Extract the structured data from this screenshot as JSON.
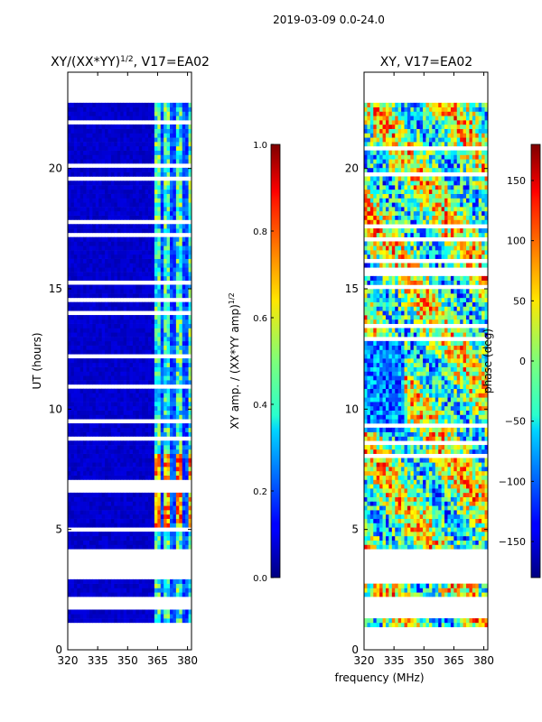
{
  "figure": {
    "suptitle": "2019-03-09 0.0-24.0",
    "xlabel_shared": "frequency (MHz)"
  },
  "chart_data": [
    {
      "type": "heatmap",
      "id": "amp",
      "title_prefix": "XY/(XX*YY)",
      "title_exp": "1/2",
      "title_suffix": ", V17=EA02",
      "ylabel": "UT (hours)",
      "xlim": [
        320,
        382
      ],
      "ylim": [
        0,
        24
      ],
      "xticks": [
        320,
        335,
        350,
        365,
        380
      ],
      "yticks": [
        0,
        5,
        10,
        15,
        20
      ],
      "data_time_range": [
        0.95,
        22.6
      ],
      "colorbar": {
        "label_prefix": "XY amp. / (XX*YY amp)",
        "label_exp": "1/2",
        "range": [
          0.0,
          1.0
        ],
        "ticks": [
          "0.0",
          "0.2",
          "0.4",
          "0.6",
          "0.8",
          "1.0"
        ],
        "tick_values": [
          0.0,
          0.2,
          0.4,
          0.6,
          0.8,
          1.0
        ],
        "colormap": "jet"
      }
    },
    {
      "type": "heatmap",
      "id": "phase",
      "title": "XY, V17=EA02",
      "xlim": [
        320,
        382
      ],
      "ylim": [
        0,
        24
      ],
      "xticks": [
        320,
        335,
        350,
        365,
        380
      ],
      "yticks": [
        0,
        5,
        10,
        15,
        20
      ],
      "data_time_range": [
        0.95,
        22.6
      ],
      "colorbar": {
        "label": "phase (deg)",
        "range": [
          -180,
          180
        ],
        "ticks": [
          "−150",
          "−100",
          "−50",
          "0",
          "50",
          "100",
          "150"
        ],
        "tick_values": [
          -150,
          -100,
          -50,
          0,
          50,
          100,
          150
        ],
        "colormap": "jet"
      }
    }
  ]
}
